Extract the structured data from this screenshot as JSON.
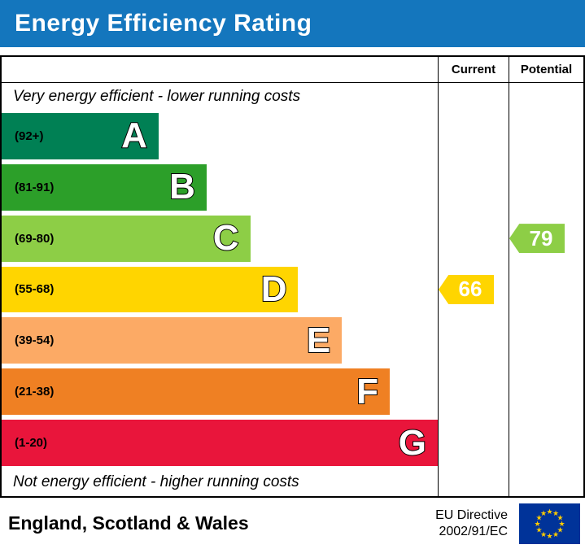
{
  "title": "Energy Efficiency Rating",
  "header": {
    "current": "Current",
    "potential": "Potential"
  },
  "top_note": "Very energy efficient - lower running costs",
  "bottom_note": "Not energy efficient - higher running costs",
  "bands": [
    {
      "letter": "A",
      "range": "(92+)",
      "color": "#008054",
      "width_pct": 36
    },
    {
      "letter": "B",
      "range": "(81-91)",
      "color": "#2c9f29",
      "width_pct": 47
    },
    {
      "letter": "C",
      "range": "(69-80)",
      "color": "#8dce46",
      "width_pct": 57
    },
    {
      "letter": "D",
      "range": "(55-68)",
      "color": "#ffd500",
      "width_pct": 68
    },
    {
      "letter": "E",
      "range": "(39-54)",
      "color": "#fcaa65",
      "width_pct": 78
    },
    {
      "letter": "F",
      "range": "(21-38)",
      "color": "#ef8023",
      "width_pct": 89
    },
    {
      "letter": "G",
      "range": "(1-20)",
      "color": "#e9153b",
      "width_pct": 100
    }
  ],
  "markers": {
    "current": {
      "value": "66",
      "band_index": 3
    },
    "potential": {
      "value": "79",
      "band_index": 2
    }
  },
  "colors": {
    "title_bg": "#1476bd",
    "current_marker": "#ffd500",
    "potential_marker": "#8dce46",
    "flag_blue": "#003399",
    "flag_star": "#ffcc00"
  },
  "footer": {
    "region": "England, Scotland & Wales",
    "directive_line1": "EU Directive",
    "directive_line2": "2002/91/EC"
  },
  "icons": {
    "eu_flag": "eu-flag-icon"
  },
  "chart_data": {
    "type": "bar",
    "title": "Energy Efficiency Rating",
    "categories": [
      "A",
      "B",
      "C",
      "D",
      "E",
      "F",
      "G"
    ],
    "band_ranges": [
      "(92+)",
      "(81-91)",
      "(69-80)",
      "(55-68)",
      "(39-54)",
      "(21-38)",
      "(1-20)"
    ],
    "values": [
      36,
      47,
      57,
      68,
      78,
      89,
      100
    ],
    "ylabel": "",
    "xlabel": "",
    "current_rating": 66,
    "current_band": "D",
    "potential_rating": 79,
    "potential_band": "C",
    "annotations": [
      "Very energy efficient - lower running costs",
      "Not energy efficient - higher running costs"
    ],
    "columns": [
      "Current",
      "Potential"
    ]
  }
}
